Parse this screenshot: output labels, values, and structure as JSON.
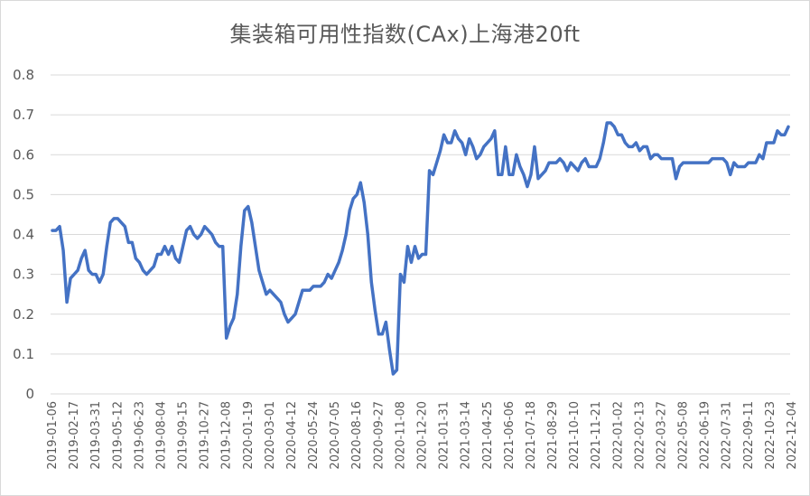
{
  "chart_data": {
    "type": "line",
    "title": "集装箱可用性指数(CAx)上海港20ft",
    "xlabel": "",
    "ylabel": "",
    "ylim": [
      0,
      0.8
    ],
    "yticks": [
      "0",
      "0.1",
      "0.2",
      "0.3",
      "0.4",
      "0.5",
      "0.6",
      "0.7",
      "0.8"
    ],
    "grid": true,
    "legend": "none",
    "line_color": "#4472C4",
    "xtick_labels": [
      "2019-01-06",
      "2019-02-17",
      "2019-03-31",
      "2019-05-12",
      "2019-06-23",
      "2019-08-04",
      "2019-09-15",
      "2019-10-27",
      "2019-12-08",
      "2020-01-19",
      "2020-03-01",
      "2020-04-12",
      "2020-05-24",
      "2020-07-05",
      "2020-08-16",
      "2020-09-27",
      "2020-11-08",
      "2020-12-20",
      "2021-01-31",
      "2021-03-14",
      "2021-04-25",
      "2021-06-06",
      "2021-07-18",
      "2021-08-29",
      "2021-10-10",
      "2021-11-21",
      "2022-01-02",
      "2022-02-13",
      "2022-03-27",
      "2022-05-08",
      "2022-06-19",
      "2022-07-31",
      "2022-09-11",
      "2022-10-23",
      "2022-12-04"
    ],
    "series": [
      {
        "values": [
          0.41,
          0.41,
          0.42,
          0.36,
          0.23,
          0.29,
          0.3,
          0.31,
          0.34,
          0.36,
          0.31,
          0.3,
          0.3,
          0.28,
          0.3,
          0.37,
          0.43,
          0.44,
          0.44,
          0.43,
          0.42,
          0.38,
          0.38,
          0.34,
          0.33,
          0.31,
          0.3,
          0.31,
          0.32,
          0.35,
          0.35,
          0.37,
          0.35,
          0.37,
          0.34,
          0.33,
          0.37,
          0.41,
          0.42,
          0.4,
          0.39,
          0.4,
          0.42,
          0.41,
          0.4,
          0.38,
          0.37,
          0.37,
          0.14,
          0.17,
          0.19,
          0.25,
          0.37,
          0.46,
          0.47,
          0.43,
          0.37,
          0.31,
          0.28,
          0.25,
          0.26,
          0.25,
          0.24,
          0.23,
          0.2,
          0.18,
          0.19,
          0.2,
          0.23,
          0.26,
          0.26,
          0.26,
          0.27,
          0.27,
          0.27,
          0.28,
          0.3,
          0.29,
          0.31,
          0.33,
          0.36,
          0.4,
          0.46,
          0.49,
          0.5,
          0.53,
          0.48,
          0.4,
          0.28,
          0.21,
          0.15,
          0.15,
          0.18,
          0.11,
          0.05,
          0.06,
          0.3,
          0.28,
          0.37,
          0.33,
          0.37,
          0.34,
          0.35,
          0.35,
          0.56,
          0.55,
          0.58,
          0.61,
          0.65,
          0.63,
          0.63,
          0.66,
          0.64,
          0.63,
          0.6,
          0.64,
          0.62,
          0.59,
          0.6,
          0.62,
          0.63,
          0.64,
          0.66,
          0.55,
          0.55,
          0.62,
          0.55,
          0.55,
          0.6,
          0.57,
          0.55,
          0.52,
          0.55,
          0.62,
          0.54,
          0.55,
          0.56,
          0.58,
          0.58,
          0.58,
          0.59,
          0.58,
          0.56,
          0.58,
          0.57,
          0.56,
          0.58,
          0.59,
          0.57,
          0.57,
          0.57,
          0.59,
          0.63,
          0.68,
          0.68,
          0.67,
          0.65,
          0.65,
          0.63,
          0.62,
          0.62,
          0.63,
          0.61,
          0.62,
          0.62,
          0.59,
          0.6,
          0.6,
          0.59,
          0.59,
          0.59,
          0.59,
          0.54,
          0.57,
          0.58,
          0.58,
          0.58,
          0.58,
          0.58,
          0.58,
          0.58,
          0.58,
          0.59,
          0.59,
          0.59,
          0.59,
          0.58,
          0.55,
          0.58,
          0.57,
          0.57,
          0.57,
          0.58,
          0.58,
          0.58,
          0.6,
          0.59,
          0.63,
          0.63,
          0.63,
          0.66,
          0.65,
          0.65,
          0.67
        ]
      }
    ]
  }
}
